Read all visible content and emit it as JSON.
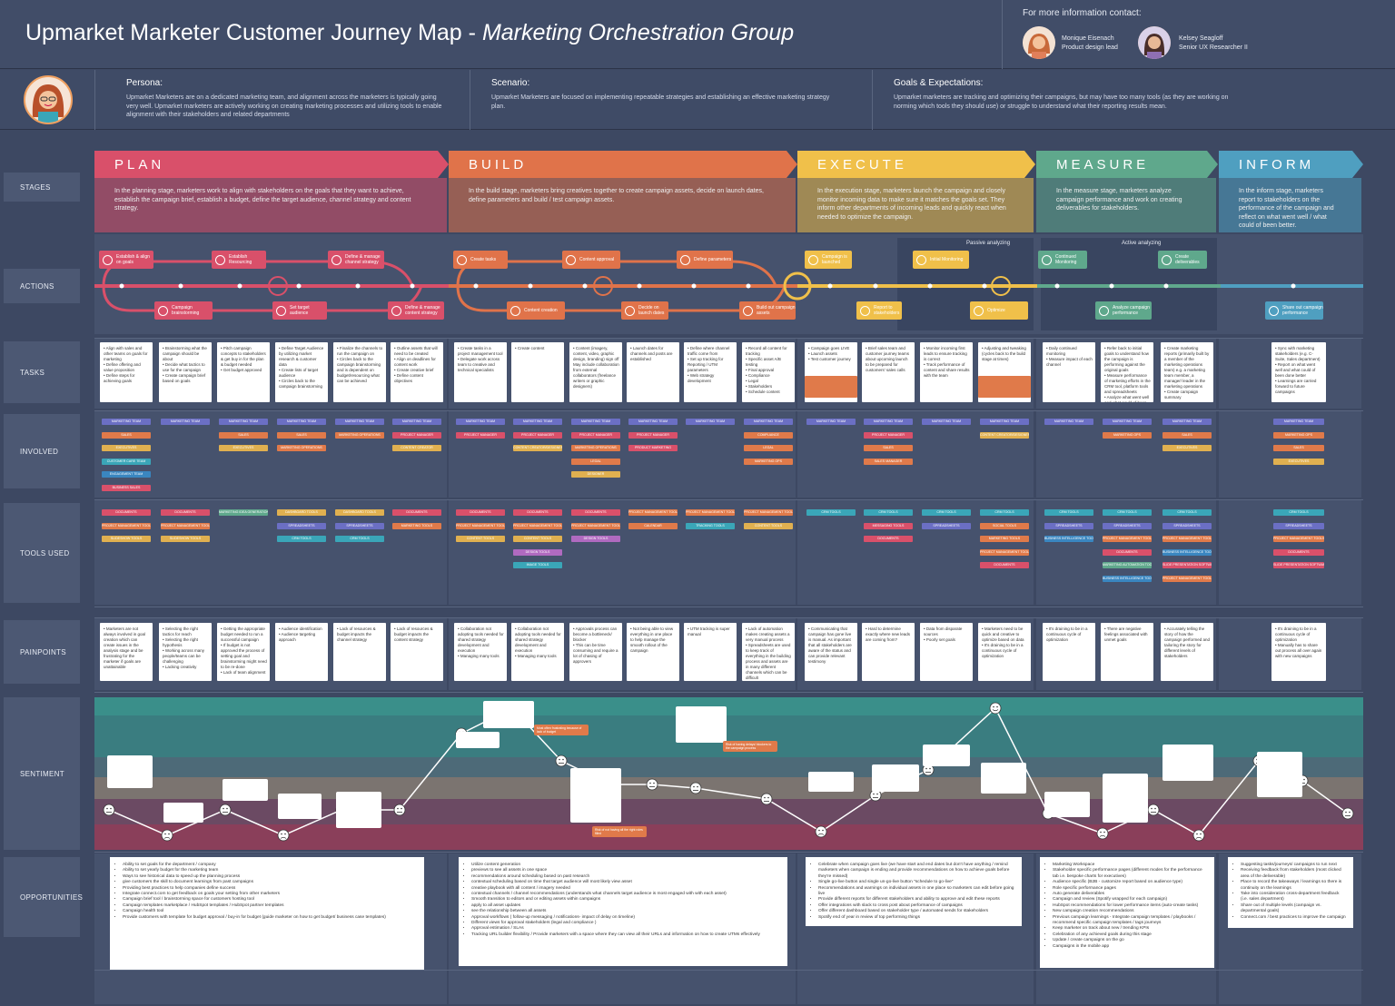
{
  "header": {
    "title_main": "Upmarket Marketer Customer Journey Map - ",
    "title_sub": "Marketing Orchestration Group",
    "contact_heading": "For more information contact:",
    "contacts": [
      {
        "name": "Monique Eisenach",
        "role": "Product design lead"
      },
      {
        "name": "Kelsey Seagloff",
        "role": "Senior UX Researcher II"
      }
    ]
  },
  "persona": {
    "label": "Persona:",
    "text": "Upmarket Marketers are on a dedicated marketing team, and alignment across the marketers is typically going very well. Upmarket marketers are actively working on creating marketing processes and utilizing tools to enable alignment with their stakeholders and related departments"
  },
  "scenario": {
    "label": "Scenario:",
    "text": "Upmarket Marketers are focused on implementing repeatable strategies and establishing an effective marketing strategy plan."
  },
  "goals": {
    "label": "Goals & Expectations:",
    "text": "Upmarket marketers are tracking and optimizing their campaigns, but may have too many tools (as they are working on norming which tools they should use) or struggle to understand what their reporting results mean."
  },
  "row_labels": [
    "STAGES",
    "ACTIONS",
    "TASKS",
    "INVOLVED",
    "TOOLS USED",
    "PAINPOINTS",
    "SENTIMENT",
    "OPPORTUNITIES"
  ],
  "stages": [
    {
      "name": "PLAN",
      "color": "#d9506a",
      "desc": "In the planning stage, marketers work to align with stakeholders on the goals that they want to achieve, establish the campaign brief, establish a budget, define the target audience, channel strategy and content strategy."
    },
    {
      "name": "BUILD",
      "color": "#e0734a",
      "desc": "In the build stage, marketers bring creatives together to create campaign assets, decide on launch dates, define parameters and build / test campaign assets."
    },
    {
      "name": "EXECUTE",
      "color": "#f0c04a",
      "desc": "In the execution stage, marketers launch the campaign and closely monitor incoming data to make sure it matches the goals set. They inform other departments of incoming leads and quickly react when needed to optimize the campaign."
    },
    {
      "name": "MEASURE",
      "color": "#5fa88c",
      "desc": "In the measure stage, marketers analyze campaign performance and work on creating deliverables for stakeholders."
    },
    {
      "name": "INFORM",
      "color": "#4f9fc0",
      "desc": "In the inform stage, marketers report to stakeholders on the performance of the campaign and reflect on what went well / what could of been better."
    }
  ],
  "actions": {
    "top": [
      {
        "label": "Establish & align on goals",
        "color": "#d9506a"
      },
      {
        "label": "Establish Resourcing",
        "color": "#d9506a"
      },
      {
        "label": "Define & manage channel strategy",
        "color": "#d9506a"
      },
      {
        "label": "Create tasks",
        "color": "#e0734a"
      },
      {
        "label": "Content approval",
        "color": "#e0734a"
      },
      {
        "label": "Define parameters",
        "color": "#e0734a"
      },
      {
        "label": "Campaign is launched",
        "color": "#f0c04a"
      },
      {
        "label": "Initial Monitoring",
        "color": "#f0c04a"
      },
      {
        "label": "Continued Monitoring",
        "color": "#5fa88c"
      },
      {
        "label": "Create deliverables",
        "color": "#5fa88c"
      }
    ],
    "bottom": [
      {
        "label": "Campaign brainstorming",
        "color": "#d9506a"
      },
      {
        "label": "Set target audience",
        "color": "#d9506a"
      },
      {
        "label": "Define & manage content strategy",
        "color": "#d9506a"
      },
      {
        "label": "Content creation",
        "color": "#e0734a"
      },
      {
        "label": "Decide on launch dates",
        "color": "#e0734a"
      },
      {
        "label": "Build out campaign assets",
        "color": "#e0734a"
      },
      {
        "label": "Report to stakeholders",
        "color": "#f0c04a"
      },
      {
        "label": "Optimize",
        "color": "#f0c04a"
      },
      {
        "label": "Analyze campaign performance",
        "color": "#5fa88c"
      },
      {
        "label": "Share out campaign performance",
        "color": "#4f9fc0"
      }
    ],
    "passive": "Passive analyzing",
    "active": "Active analyzing"
  },
  "tasks": [
    "• Align with sales and other teams on goals for marketing\n• Define offering and value proposition\n• Define steps for achieving goals",
    "• Brainstorming what the campaign should be about\n• Decide what tactics to use for the campaign\n• Create campaign brief based on goals",
    "• Pitch campaign concepts to stakeholders & get buy in for the plan & budget needed\n• Get budget approved",
    "• Define Target Audience by utilizing market research & customer data\n• Create lists of target audience\n• Circles back to the campaign brainstorming",
    "• Finalize the channels to run the campaign on\n• Circles back to the campaign brainstorming and is dependent on budget/resourcing what can be achieved",
    "• Outline assets that will need to be created\n• Align on deadlines for content work\n• Create creative brief\n• Define content objectives",
    "• Create tasks in a project management tool\n• Delegate work across team to creative and technical specialists",
    "• Create content",
    "• Content (imagery, content, video, graphic design, branding) sign off\nMay include collaboration from external collaborators (freelance writers or graphic designers)",
    "• Launch dates for channels and posts are established",
    "• Define where channel traffic come from\n• Set up tracking for Reporting / UTM parameters\n• Web strategy development",
    "• Record all content for tracking\n• Specific asset A/B testing\n• Final approval\n  • Compliance\n  • Legal\n  • Stakeholders\n• Schedule content",
    "• Campaign goes LIVE\n• Launch assets\n• Test customer journey",
    "• Brief sales team and customer journey teams about upcoming launch to be prepared for customers' sales calls",
    "• Monitor incoming first leads to ensure tracking is correct\n• Track performance of content and share results with the team",
    "• Adjusting and tweaking (cycles back to the build stage at times)",
    "• Daily continued monitoring\n• Measure impact of each channel",
    "• Refer back to initial goals to understand how the campaign is performing against the original goals\n• Measure performance of marketing efforts in the CRM tool, platform tools and spreadsheets\n• Analyze what went well and what could of been done better",
    "• Create marketing reports (primarily built by a member of the marketing operations team) e.g. a marketing team member, a manager/ leader in the marketing operations\n• Create campaign summary",
    "• Sync with marketing stakeholders (e.g. C-Suite, Sales department)\n• Report on what went well and what could of been done better\n• Learnings are carried forward to future campaigns"
  ],
  "involved": [
    [
      "MARKETING TEAM",
      "SALES",
      "EXECUTIVES",
      "CUSTOMER CARE TEAM",
      "ENGAGEMENT TEAM",
      "BUSINESS SALES"
    ],
    [
      "MARKETING TEAM"
    ],
    [
      "MARKETING TEAM",
      "SALES",
      "EXECUTIVES"
    ],
    [
      "MARKETING TEAM",
      "SALES",
      "MARKETING OPERATIONS"
    ],
    [
      "MARKETING TEAM",
      "MARKETING OPERATIONS"
    ],
    [
      "MARKETING TEAM",
      "PROJECT MANAGER",
      "CONTENT CREATOR"
    ],
    [
      "MARKETING TEAM",
      "PROJECT MANAGER"
    ],
    [
      "MARKETING TEAM",
      "PROJECT MANAGER",
      "CONTENT CREATOR/DESIGNER"
    ],
    [
      "MARKETING TEAM",
      "PROJECT MANAGER",
      "MARKETING OPERATIONS",
      "LEGAL",
      "DESIGNER"
    ],
    [
      "MARKETING TEAM",
      "PROJECT MANAGER",
      "PRODUCT MARKETING"
    ],
    [
      "MARKETING TEAM"
    ],
    [
      "MARKETING TEAM",
      "COMPLIANCE",
      "LEGAL",
      "MARKETING OPS"
    ],
    [
      "MARKETING TEAM"
    ],
    [
      "MARKETING TEAM",
      "PROJECT MANAGER",
      "SALES",
      "SALES MANAGER"
    ],
    [
      "MARKETING TEAM"
    ],
    [
      "MARKETING TEAM",
      "CONTENT CREATOR/DESIGNER"
    ],
    [
      "MARKETING TEAM"
    ],
    [
      "MARKETING TEAM",
      "MARKETING OPS"
    ],
    [
      "MARKETING TEAM",
      "SALES",
      "EXECUTIVES"
    ],
    [
      "MARKETING TEAM",
      "MARKETING OPS",
      "SALES",
      "EXECUTIVES"
    ]
  ],
  "tools": [
    [
      "DOCUMENTS",
      "PROJECT MANAGEMENT TOOLS",
      "SLIDESHOW TOOLS"
    ],
    [
      "DOCUMENTS",
      "PROJECT MANAGEMENT TOOLS",
      "SLIDESHOW TOOLS"
    ],
    [
      "MARKETING IDEA GENERATION"
    ],
    [
      "DASHBOARD TOOLS",
      "SPREADSHEETS",
      "CRM TOOLS"
    ],
    [
      "DASHBOARD TOOLS",
      "SPREADSHEETS",
      "CRM TOOLS"
    ],
    [
      "DOCUMENTS",
      "MARKETING TOOLS"
    ],
    [
      "DOCUMENTS",
      "PROJECT MANAGEMENT TOOLS",
      "CONTENT TOOLS"
    ],
    [
      "DOCUMENTS",
      "PROJECT MANAGEMENT TOOLS",
      "CONTENT TOOLS",
      "DESIGN TOOLS",
      "IMAGE TOOLS"
    ],
    [
      "DOCUMENTS",
      "PROJECT MANAGEMENT TOOLS",
      "DESIGN TOOLS"
    ],
    [
      "PROJECT MANAGEMENT TOOLS",
      "CALENDAR"
    ],
    [
      "PROJECT MANAGEMENT TOOLS",
      "TRACKING TOOLS"
    ],
    [
      "PROJECT MANAGEMENT TOOLS",
      "CONTENT TOOLS"
    ],
    [
      "CRM TOOLS"
    ],
    [
      "CRM TOOLS",
      "MESSAGING TOOLS",
      "DOCUMENTS"
    ],
    [
      "CRM TOOLS",
      "SPREADSHEETS"
    ],
    [
      "CRM TOOLS",
      "SOCIAL TOOLS",
      "MARKETING TOOLS",
      "PROJECT MANAGEMENT TOOLS",
      "DOCUMENTS"
    ],
    [
      "CRM TOOLS",
      "SPREADSHEETS",
      "BUSINESS INTELLIGENCE TOOLS"
    ],
    [
      "CRM TOOLS",
      "SPREADSHEETS",
      "PROJECT MANAGEMENT TOOLS",
      "DOCUMENTS",
      "MARKETING AUTOMATION TOOLS",
      "BUSINESS INTELLIGENCE TOOLS"
    ],
    [
      "CRM TOOLS",
      "SPREADSHEETS",
      "PROJECT MANAGEMENT TOOLS",
      "BUSINESS INTELLIGENCE TOOLS",
      "SLIDE PRESENTATION SOFTWARE",
      "PROJECT MANAGEMENT TOOLS"
    ],
    [
      "CRM TOOLS",
      "SPREADSHEETS",
      "PROJECT MANAGEMENT TOOLS",
      "DOCUMENTS",
      "SLIDE PRESENTATION SOFTWARE"
    ]
  ],
  "pains": [
    "• Marketers are not always involved in goal creation which can create issues in the analysis stage and be frustrating for the marketer if goals are unattainable",
    "• Selecting the right tactics for reach\n• Selecting the right hypothesis\n• Working across many people/teams can be challenging\n• Lacking creativity",
    "• Getting the appropriate budget needed to run a successful campaign\n• If budget is not approved the process of setting goal and brainstorming might need to be re-done\n• Lack of team alignment",
    "• Audience identification\n• Audience targeting approach",
    "• Lack of resources & budget impacts the channel strategy",
    "• Lack of resources & budget impacts the content strategy",
    "• Collaboration not adopting tools needed for shared strategy development and execution\n• Managing many tools",
    "• Collaboration not adopting tools needed for shared strategy development and execution\n• Managing many tools",
    "• Approvals process can become a bottleneck/ blocker\n• This can be time consuming and require a lot of chasing of approvers",
    "• Not being able to view everything in one place to help manage the smooth rollout of the campaign",
    "• UTM tracking is super manual",
    "• Lack of automation makes creating assets a very manual process\n• Spreadsheets are used to keep track of everything in the building process and assets are in many different channels which can be difficult",
    "• Communicating that campaign has gone live is manual. As important that all stakeholders are aware of the status and can provide relevant testimony",
    "• Hard to determine exactly where new leads are coming from?",
    "• Data from disparate sources\n• Poorly set goals",
    "• Marketers need to be quick and creative to optimize based on data\n• It's draining to be in a continuous cycle of optimization",
    "• It's draining to be in a continuous cycle of optimization",
    "• There are negative feelings associated with unmet goals",
    "• Accurately telling the story of how the campaign performed and tailoring the story for different levels of stakeholders",
    "• It's draining to be in a continuous cycle of optimization\n• Manually has to share out process all over again with new campaigns"
  ],
  "sentiment": {
    "points": [
      1,
      0,
      1,
      0,
      1,
      1,
      3,
      4,
      2,
      1,
      1,
      3,
      1,
      0,
      1,
      2,
      4,
      1,
      0,
      1,
      0,
      2,
      0,
      1,
      0,
      1,
      1
    ],
    "callouts": [
      "Most often frustrating because of lack of budget",
      "Risk of having delays/ blockers to the campaign process",
      "Risk of not having all the right roles filled",
      "Risk of not having delays/ blockers to the campaign process"
    ]
  },
  "opportunities": [
    [
      "Ability to set goals for the department / company",
      "Ability to set yearly budget for the marketing team",
      "Ways to see historical data to speed up the planning process",
      "give customers the skill to document learnings from past campaigns",
      "Providing best practices to help companies define success",
      "Integrate connect.com to get feedback on goals your setting from other marketers",
      "Campaign brief tool / brainstorming space for customers hosting tool",
      "Campaign templates marketplace / HubSpot templates / HubSpot partner templates",
      "Campaign health tool",
      "Provide customers with template for budget approval / buy-in for budget (guide marketer on how to get budget/ business case templates)"
    ],
    [
      "Utilize content generation",
      "previews to see all assets in one space",
      "recommendations around scheduling based on past research",
      "contextual scheduling based on time that target audience will most likely view asset",
      "creative playbook with all content / imagery needed",
      "contextual channels / channel recommendations (understands what channels target audience is most engaged with with each asset)",
      "Smooth transition to editors and or editing assets within campaigns",
      "apply to all asset updates",
      "see the relationship between all assets",
      "Approval workflows ( follow-up messaging / notifications- impact of delay on timeline)",
      "Different views for approval stakeholders (legal and compliance )",
      "Approval estimation / SLAs",
      "Tracking URL builder flexibility / Provide marketers with a space where they can view all their URLs and information on how to create UTMs effectively"
    ],
    [
      "Celebrate when campaign goes live (we have start and end dates but don't have anything / remind marketers when campaign is ending and provide recommendations on how to achieve goals before they're missed)",
      "Single go-live button and single un-go-live button \"schedule to go-live\"",
      "Recommendations and warnings on individual assets in one place so marketers can edit before going live",
      "Provide different reports for different stakeholders and ability to approve and edit these reports",
      "Offer integrations with slack to cross post about performance of campaigns",
      "Offer different dashboard based on stakeholder type / automated sends for stakeholders",
      "Spotify end of year in review of top performing things"
    ],
    [
      "Marketing Workspace",
      "Stakeholder specific performance pages (different modes for the performance tab i.e. bespoke charts for executives)",
      "Audience specific (B2B - customize report based on audience type)",
      "Role specific performance pages",
      "Auto generate deliverables",
      "Campaign and review (Spotify wrapped for each campaign)",
      "HubSpot recommendations for lower performance items (auto-create tasks)",
      "New campaign creation recommendations",
      "Previous campaign learnings - Integrate campaign templates / playbooks / recommend specific campaign templates / tags journeys",
      "Keep marketer on track about new / trending KPIs",
      "Celebration of any achieved goals during this stage",
      "Update / create campaigns on the go",
      "Campaigns in the mobile app"
    ],
    [
      "Suggesting tasks/journeys/ campaigns to run next",
      "Receiving feedback from stakeholders (most clicked area of the deliverable)",
      "Place to record the takeaways / learnings so there is continuity on the learnings",
      "Take into consideration cross-department feedback (i.e. sales department)",
      "Share out of multiple levels (campaign vs. departmental goals)",
      "Connect.com / best practices to improve the campaign"
    ]
  ]
}
